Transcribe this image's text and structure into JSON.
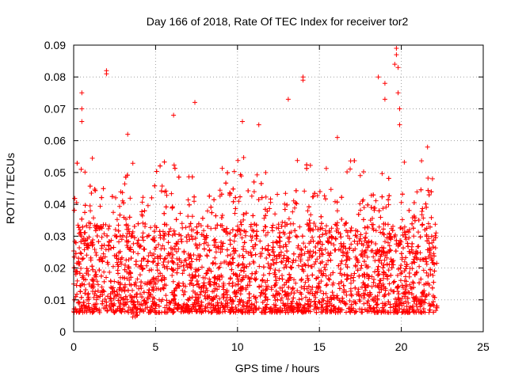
{
  "chart_data": {
    "type": "scatter",
    "title": "Day 166 of 2018, Rate Of TEC Index for receiver tor2",
    "xlabel": "GPS time / hours",
    "ylabel": "ROTI / TECUs",
    "xlim": [
      0,
      25
    ],
    "ylim": [
      0,
      0.09
    ],
    "x_ticks": [
      "0",
      "5",
      "10",
      "15",
      "20",
      "25"
    ],
    "y_ticks": [
      "0",
      "0.01",
      "0.02",
      "0.03",
      "0.04",
      "0.05",
      "0.06",
      "0.07",
      "0.08",
      "0.09"
    ],
    "grid": true,
    "marker": "+",
    "series_color": "#ff0000",
    "series": [
      {
        "name": "ROTI",
        "description": "Dense scatter of ROTI samples from ~0 to ~22.2 h; bulk between 0.005 and 0.035 TECU/min with spikes up to 0.09",
        "data_range_hours": [
          0,
          22.2
        ],
        "baseline_range": [
          0.005,
          0.035
        ],
        "notable_points": [
          {
            "x": 0.5,
            "y": 0.075
          },
          {
            "x": 0.5,
            "y": 0.07
          },
          {
            "x": 0.5,
            "y": 0.066
          },
          {
            "x": 2.0,
            "y": 0.082
          },
          {
            "x": 2.0,
            "y": 0.081
          },
          {
            "x": 3.3,
            "y": 0.062
          },
          {
            "x": 6.1,
            "y": 0.068
          },
          {
            "x": 7.4,
            "y": 0.072
          },
          {
            "x": 10.3,
            "y": 0.066
          },
          {
            "x": 11.3,
            "y": 0.065
          },
          {
            "x": 13.1,
            "y": 0.073
          },
          {
            "x": 14.0,
            "y": 0.08
          },
          {
            "x": 14.0,
            "y": 0.079
          },
          {
            "x": 16.1,
            "y": 0.061
          },
          {
            "x": 18.6,
            "y": 0.08
          },
          {
            "x": 19.0,
            "y": 0.078
          },
          {
            "x": 19.0,
            "y": 0.073
          },
          {
            "x": 19.7,
            "y": 0.089
          },
          {
            "x": 19.7,
            "y": 0.087
          },
          {
            "x": 19.6,
            "y": 0.084
          },
          {
            "x": 19.8,
            "y": 0.083
          },
          {
            "x": 19.8,
            "y": 0.075
          },
          {
            "x": 19.9,
            "y": 0.07
          },
          {
            "x": 19.9,
            "y": 0.065
          },
          {
            "x": 21.6,
            "y": 0.058
          },
          {
            "x": 21.9,
            "y": 0.048
          }
        ]
      }
    ]
  }
}
